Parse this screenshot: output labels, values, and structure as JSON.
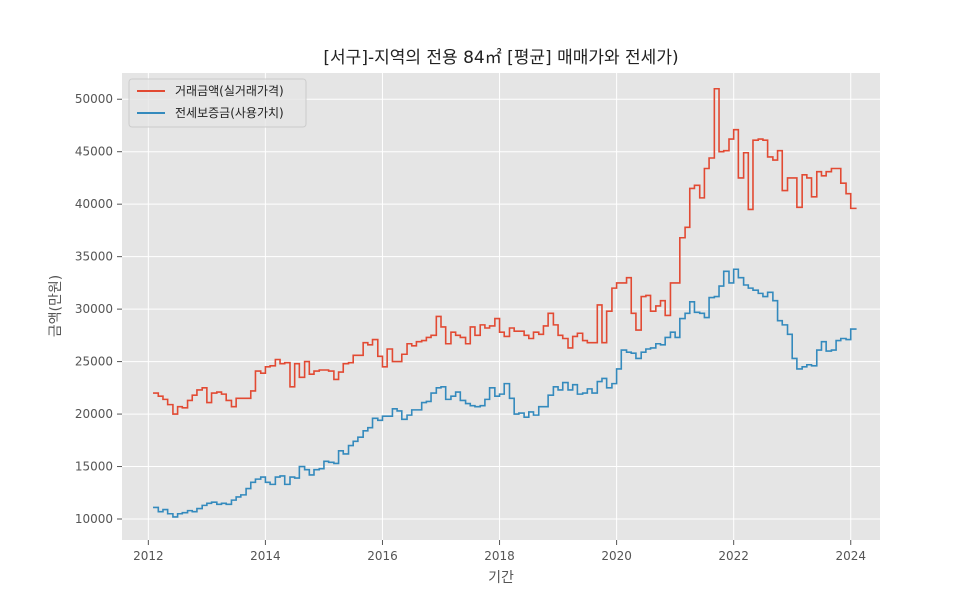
{
  "chart_data": {
    "type": "line",
    "title": "[서구]-지역의 전용 84㎡ [평균] 매매가와 전세가)",
    "xlabel": "기간",
    "ylabel": "금액(만원)",
    "xlim": [
      2011.55,
      2024.5
    ],
    "ylim": [
      8000,
      52500
    ],
    "x_ticks": [
      2012,
      2014,
      2016,
      2018,
      2020,
      2022,
      2024
    ],
    "x_tick_labels": [
      "2012",
      "2014",
      "2016",
      "2018",
      "2020",
      "2022",
      "2024"
    ],
    "y_ticks": [
      10000,
      15000,
      20000,
      25000,
      30000,
      35000,
      40000,
      45000,
      50000
    ],
    "y_tick_labels": [
      "10000",
      "15000",
      "20000",
      "25000",
      "30000",
      "35000",
      "40000",
      "45000",
      "50000"
    ],
    "grid": true,
    "legend_position": "top-left",
    "step": "post",
    "series": [
      {
        "name": "거래금액(실거래가격)",
        "color": "#E24A33",
        "points": [
          [
            2012.08,
            22000
          ],
          [
            2012.17,
            21700
          ],
          [
            2012.25,
            21400
          ],
          [
            2012.33,
            20900
          ],
          [
            2012.42,
            20000
          ],
          [
            2012.5,
            20700
          ],
          [
            2012.58,
            20600
          ],
          [
            2012.67,
            21300
          ],
          [
            2012.75,
            21800
          ],
          [
            2012.83,
            22300
          ],
          [
            2012.92,
            22500
          ],
          [
            2013.0,
            21100
          ],
          [
            2013.08,
            22000
          ],
          [
            2013.17,
            22100
          ],
          [
            2013.25,
            21900
          ],
          [
            2013.33,
            21300
          ],
          [
            2013.42,
            20700
          ],
          [
            2013.5,
            21500
          ],
          [
            2013.58,
            21500
          ],
          [
            2013.67,
            21500
          ],
          [
            2013.75,
            22200
          ],
          [
            2013.83,
            24100
          ],
          [
            2013.92,
            23900
          ],
          [
            2014.0,
            24500
          ],
          [
            2014.08,
            24600
          ],
          [
            2014.17,
            25200
          ],
          [
            2014.25,
            24800
          ],
          [
            2014.33,
            24900
          ],
          [
            2014.42,
            22600
          ],
          [
            2014.5,
            24800
          ],
          [
            2014.58,
            23500
          ],
          [
            2014.67,
            25000
          ],
          [
            2014.75,
            23800
          ],
          [
            2014.83,
            24100
          ],
          [
            2014.92,
            24200
          ],
          [
            2015.0,
            24200
          ],
          [
            2015.08,
            24100
          ],
          [
            2015.17,
            23300
          ],
          [
            2015.25,
            24000
          ],
          [
            2015.33,
            24800
          ],
          [
            2015.42,
            24900
          ],
          [
            2015.5,
            25600
          ],
          [
            2015.58,
            25600
          ],
          [
            2015.67,
            26800
          ],
          [
            2015.75,
            26600
          ],
          [
            2015.83,
            27100
          ],
          [
            2015.92,
            25500
          ],
          [
            2016.0,
            24500
          ],
          [
            2016.08,
            26200
          ],
          [
            2016.17,
            25000
          ],
          [
            2016.25,
            25000
          ],
          [
            2016.33,
            25700
          ],
          [
            2016.42,
            26700
          ],
          [
            2016.5,
            26500
          ],
          [
            2016.58,
            26900
          ],
          [
            2016.67,
            27000
          ],
          [
            2016.75,
            27300
          ],
          [
            2016.83,
            27500
          ],
          [
            2016.92,
            29300
          ],
          [
            2017.0,
            28300
          ],
          [
            2017.08,
            26700
          ],
          [
            2017.17,
            27800
          ],
          [
            2017.25,
            27500
          ],
          [
            2017.33,
            27300
          ],
          [
            2017.42,
            26700
          ],
          [
            2017.5,
            28300
          ],
          [
            2017.58,
            27500
          ],
          [
            2017.67,
            28500
          ],
          [
            2017.75,
            28200
          ],
          [
            2017.83,
            28400
          ],
          [
            2017.92,
            29100
          ],
          [
            2018.0,
            27800
          ],
          [
            2018.08,
            27400
          ],
          [
            2018.17,
            28200
          ],
          [
            2018.25,
            27900
          ],
          [
            2018.33,
            27900
          ],
          [
            2018.42,
            27500
          ],
          [
            2018.5,
            27200
          ],
          [
            2018.58,
            27800
          ],
          [
            2018.67,
            27600
          ],
          [
            2018.75,
            28400
          ],
          [
            2018.83,
            29600
          ],
          [
            2018.92,
            28500
          ],
          [
            2019.0,
            27500
          ],
          [
            2019.08,
            27200
          ],
          [
            2019.17,
            26300
          ],
          [
            2019.25,
            27400
          ],
          [
            2019.33,
            27700
          ],
          [
            2019.42,
            27000
          ],
          [
            2019.5,
            26800
          ],
          [
            2019.58,
            26800
          ],
          [
            2019.67,
            30400
          ],
          [
            2019.75,
            26800
          ],
          [
            2019.83,
            29800
          ],
          [
            2019.92,
            32000
          ],
          [
            2020.0,
            32500
          ],
          [
            2020.08,
            32500
          ],
          [
            2020.17,
            33000
          ],
          [
            2020.25,
            29600
          ],
          [
            2020.33,
            28000
          ],
          [
            2020.42,
            31200
          ],
          [
            2020.5,
            31300
          ],
          [
            2020.58,
            29800
          ],
          [
            2020.67,
            30300
          ],
          [
            2020.75,
            30800
          ],
          [
            2020.83,
            29400
          ],
          [
            2020.92,
            32500
          ],
          [
            2021.0,
            32500
          ],
          [
            2021.08,
            36800
          ],
          [
            2021.17,
            37800
          ],
          [
            2021.25,
            41500
          ],
          [
            2021.33,
            41800
          ],
          [
            2021.42,
            40600
          ],
          [
            2021.5,
            43400
          ],
          [
            2021.58,
            44400
          ],
          [
            2021.67,
            51000
          ],
          [
            2021.75,
            45000
          ],
          [
            2021.83,
            45100
          ],
          [
            2021.92,
            46200
          ],
          [
            2022.0,
            47100
          ],
          [
            2022.08,
            42500
          ],
          [
            2022.17,
            44900
          ],
          [
            2022.25,
            39500
          ],
          [
            2022.33,
            46100
          ],
          [
            2022.42,
            46200
          ],
          [
            2022.5,
            46100
          ],
          [
            2022.58,
            44500
          ],
          [
            2022.67,
            44200
          ],
          [
            2022.75,
            45100
          ],
          [
            2022.83,
            41300
          ],
          [
            2022.92,
            42500
          ],
          [
            2023.0,
            42500
          ],
          [
            2023.08,
            39700
          ],
          [
            2023.17,
            42800
          ],
          [
            2023.25,
            42500
          ],
          [
            2023.33,
            40700
          ],
          [
            2023.42,
            43100
          ],
          [
            2023.5,
            42700
          ],
          [
            2023.58,
            43100
          ],
          [
            2023.67,
            43400
          ],
          [
            2023.75,
            43400
          ],
          [
            2023.83,
            42000
          ],
          [
            2023.92,
            41000
          ],
          [
            2024.0,
            39600
          ],
          [
            2024.1,
            39600
          ]
        ]
      },
      {
        "name": "전세보증금(사용가치)",
        "color": "#348ABD",
        "points": [
          [
            2012.08,
            11100
          ],
          [
            2012.17,
            10700
          ],
          [
            2012.25,
            10900
          ],
          [
            2012.33,
            10500
          ],
          [
            2012.42,
            10200
          ],
          [
            2012.5,
            10500
          ],
          [
            2012.58,
            10600
          ],
          [
            2012.67,
            10800
          ],
          [
            2012.75,
            10700
          ],
          [
            2012.83,
            11000
          ],
          [
            2012.92,
            11300
          ],
          [
            2013.0,
            11500
          ],
          [
            2013.08,
            11600
          ],
          [
            2013.17,
            11400
          ],
          [
            2013.25,
            11500
          ],
          [
            2013.33,
            11400
          ],
          [
            2013.42,
            11800
          ],
          [
            2013.5,
            12100
          ],
          [
            2013.58,
            12300
          ],
          [
            2013.67,
            12900
          ],
          [
            2013.75,
            13500
          ],
          [
            2013.83,
            13800
          ],
          [
            2013.92,
            14000
          ],
          [
            2014.0,
            13500
          ],
          [
            2014.08,
            13300
          ],
          [
            2014.17,
            14000
          ],
          [
            2014.25,
            14100
          ],
          [
            2014.33,
            13300
          ],
          [
            2014.42,
            14000
          ],
          [
            2014.5,
            13900
          ],
          [
            2014.58,
            15000
          ],
          [
            2014.67,
            14700
          ],
          [
            2014.75,
            14200
          ],
          [
            2014.83,
            14700
          ],
          [
            2014.92,
            14800
          ],
          [
            2015.0,
            15500
          ],
          [
            2015.08,
            15400
          ],
          [
            2015.17,
            15300
          ],
          [
            2015.25,
            16500
          ],
          [
            2015.33,
            16200
          ],
          [
            2015.42,
            17000
          ],
          [
            2015.5,
            17400
          ],
          [
            2015.58,
            17800
          ],
          [
            2015.67,
            18400
          ],
          [
            2015.75,
            18700
          ],
          [
            2015.83,
            19600
          ],
          [
            2015.92,
            19400
          ],
          [
            2016.0,
            19800
          ],
          [
            2016.08,
            19800
          ],
          [
            2016.17,
            20500
          ],
          [
            2016.25,
            20300
          ],
          [
            2016.33,
            19500
          ],
          [
            2016.42,
            19900
          ],
          [
            2016.5,
            20400
          ],
          [
            2016.58,
            20400
          ],
          [
            2016.67,
            21100
          ],
          [
            2016.75,
            21200
          ],
          [
            2016.83,
            22000
          ],
          [
            2016.92,
            22500
          ],
          [
            2017.0,
            22600
          ],
          [
            2017.08,
            21400
          ],
          [
            2017.17,
            21700
          ],
          [
            2017.25,
            22100
          ],
          [
            2017.33,
            21300
          ],
          [
            2017.42,
            21000
          ],
          [
            2017.5,
            20800
          ],
          [
            2017.58,
            20700
          ],
          [
            2017.67,
            20800
          ],
          [
            2017.75,
            21400
          ],
          [
            2017.83,
            22500
          ],
          [
            2017.92,
            21700
          ],
          [
            2018.0,
            21900
          ],
          [
            2018.08,
            22900
          ],
          [
            2018.17,
            21500
          ],
          [
            2018.25,
            20000
          ],
          [
            2018.33,
            20100
          ],
          [
            2018.42,
            19700
          ],
          [
            2018.5,
            20200
          ],
          [
            2018.58,
            19900
          ],
          [
            2018.67,
            20700
          ],
          [
            2018.75,
            20700
          ],
          [
            2018.83,
            21800
          ],
          [
            2018.92,
            22600
          ],
          [
            2019.0,
            22300
          ],
          [
            2019.08,
            23000
          ],
          [
            2019.17,
            22300
          ],
          [
            2019.25,
            22800
          ],
          [
            2019.33,
            21900
          ],
          [
            2019.42,
            22000
          ],
          [
            2019.5,
            22400
          ],
          [
            2019.58,
            22000
          ],
          [
            2019.67,
            23100
          ],
          [
            2019.75,
            23400
          ],
          [
            2019.83,
            22500
          ],
          [
            2019.92,
            22900
          ],
          [
            2020.0,
            24300
          ],
          [
            2020.08,
            26100
          ],
          [
            2020.17,
            25900
          ],
          [
            2020.25,
            25800
          ],
          [
            2020.33,
            25300
          ],
          [
            2020.42,
            25900
          ],
          [
            2020.5,
            26200
          ],
          [
            2020.58,
            26300
          ],
          [
            2020.67,
            26700
          ],
          [
            2020.75,
            26600
          ],
          [
            2020.83,
            27300
          ],
          [
            2020.92,
            27800
          ],
          [
            2021.0,
            27300
          ],
          [
            2021.08,
            29100
          ],
          [
            2021.17,
            29600
          ],
          [
            2021.25,
            30700
          ],
          [
            2021.33,
            29700
          ],
          [
            2021.42,
            29600
          ],
          [
            2021.5,
            29200
          ],
          [
            2021.58,
            31100
          ],
          [
            2021.67,
            31200
          ],
          [
            2021.75,
            32200
          ],
          [
            2021.83,
            33600
          ],
          [
            2021.92,
            32500
          ],
          [
            2022.0,
            33800
          ],
          [
            2022.08,
            33000
          ],
          [
            2022.17,
            32300
          ],
          [
            2022.25,
            32000
          ],
          [
            2022.33,
            31800
          ],
          [
            2022.42,
            31500
          ],
          [
            2022.5,
            31200
          ],
          [
            2022.58,
            31600
          ],
          [
            2022.67,
            30800
          ],
          [
            2022.75,
            28900
          ],
          [
            2022.83,
            28500
          ],
          [
            2022.92,
            27600
          ],
          [
            2023.0,
            25300
          ],
          [
            2023.08,
            24300
          ],
          [
            2023.17,
            24500
          ],
          [
            2023.25,
            24700
          ],
          [
            2023.33,
            24600
          ],
          [
            2023.42,
            26100
          ],
          [
            2023.5,
            26900
          ],
          [
            2023.58,
            26000
          ],
          [
            2023.67,
            26100
          ],
          [
            2023.75,
            27000
          ],
          [
            2023.83,
            27200
          ],
          [
            2023.92,
            27100
          ],
          [
            2024.0,
            28100
          ],
          [
            2024.1,
            28100
          ]
        ]
      }
    ]
  }
}
